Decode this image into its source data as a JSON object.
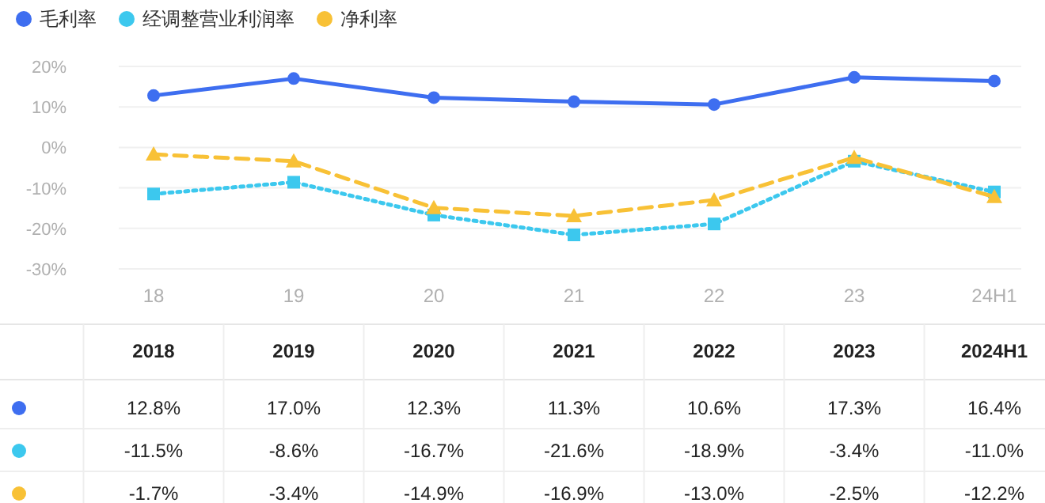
{
  "chart_data": {
    "type": "line",
    "categories": [
      "18",
      "19",
      "20",
      "21",
      "22",
      "23",
      "24H1"
    ],
    "ylim": [
      -30,
      20
    ],
    "yticks": [
      {
        "value": 20,
        "label": "20%"
      },
      {
        "value": 10,
        "label": "10%"
      },
      {
        "value": 0,
        "label": "0%"
      },
      {
        "value": -10,
        "label": "-10%"
      },
      {
        "value": -20,
        "label": "-20%"
      },
      {
        "value": -30,
        "label": "-30%"
      }
    ],
    "grid": "y",
    "legend": "top left",
    "annotations": [
      "2018",
      "2019",
      "2020",
      "2021",
      "2022",
      "2023",
      "2024H1"
    ],
    "series": [
      {
        "name": "毛利率",
        "color": "#3e6ef0",
        "marker": "circle",
        "line_style": "solid",
        "values": [
          12.8,
          17.0,
          12.3,
          11.3,
          10.6,
          17.3,
          16.4
        ],
        "value_labels": [
          "12.8%",
          "17.0%",
          "12.3%",
          "11.3%",
          "10.6%",
          "17.3%",
          "16.4%"
        ]
      },
      {
        "name": "经调整营业利润率",
        "color": "#3cc8ee",
        "marker": "square",
        "line_style": "dotted",
        "values": [
          -11.5,
          -8.6,
          -16.7,
          -21.6,
          -18.9,
          -3.4,
          -11.0
        ],
        "value_labels": [
          "-11.5%",
          "-8.6%",
          "-16.7%",
          "-21.6%",
          "-18.9%",
          "-3.4%",
          "-11.0%"
        ]
      },
      {
        "name": "净利率",
        "color": "#f8c136",
        "marker": "triangle",
        "line_style": "dashed",
        "values": [
          -1.7,
          -3.4,
          -14.9,
          -16.9,
          -13.0,
          -2.5,
          -12.2
        ],
        "value_labels": [
          "-1.7%",
          "-3.4%",
          "-14.9%",
          "-16.9%",
          "-13.0%",
          "-2.5%",
          "-12.2%"
        ]
      }
    ]
  }
}
